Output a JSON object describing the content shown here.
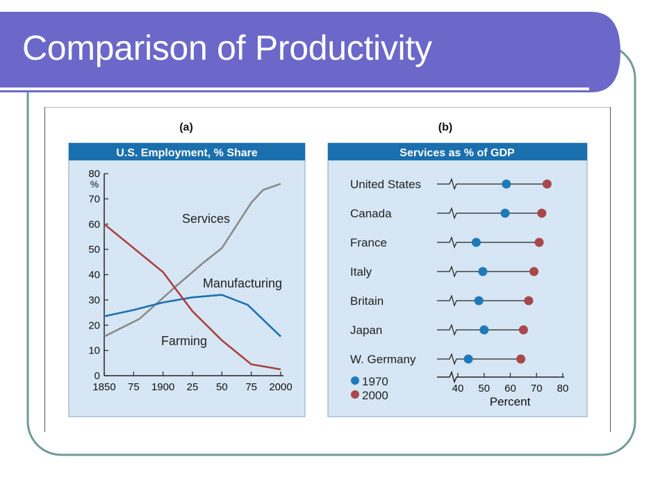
{
  "slide": {
    "title": "Comparison of Productivity",
    "colors": {
      "title_bar": "#6b68c9",
      "frame": "#6f9a96",
      "panel_bg": "#d6e6f4",
      "panel_header": "#1a6fae"
    }
  },
  "chart_data": [
    {
      "type": "line",
      "panel_label": "(a)",
      "title": "U.S. Employment, % Share",
      "xlabel": "",
      "ylabel": "%",
      "x_tick_labels": [
        "1850",
        "75",
        "1900",
        "25",
        "50",
        "75",
        "2000"
      ],
      "x_tick_values": [
        1850,
        1875,
        1900,
        1925,
        1950,
        1975,
        2000
      ],
      "xlim": [
        1850,
        2000
      ],
      "y_tick_labels": [
        "0",
        "10",
        "20",
        "30",
        "40",
        "50",
        "60",
        "70",
        "80"
      ],
      "ylim": [
        0,
        80
      ],
      "grid": false,
      "series": [
        {
          "name": "Services",
          "color": "#8a8a8a",
          "x": [
            1850,
            1880,
            1910,
            1935,
            1950,
            1975,
            1985,
            2000
          ],
          "y": [
            15.5,
            22.5,
            35,
            45,
            50.5,
            68.5,
            73.5,
            76
          ]
        },
        {
          "name": "Manufacturing",
          "color": "#1e6fb0",
          "x": [
            1850,
            1875,
            1900,
            1925,
            1950,
            1972,
            2000
          ],
          "y": [
            23.5,
            26,
            29,
            31,
            32,
            28,
            15.5
          ]
        },
        {
          "name": "Farming",
          "color": "#a8413f",
          "x": [
            1850,
            1875,
            1900,
            1925,
            1950,
            1975,
            2000
          ],
          "y": [
            60,
            50.5,
            41,
            25.5,
            14,
            4.5,
            2.5
          ]
        }
      ]
    },
    {
      "type": "scatter",
      "panel_label": "(b)",
      "title": "Services as % of GDP",
      "xlabel": "Percent",
      "x_ticks": [
        40,
        50,
        60,
        70,
        80
      ],
      "xlim": [
        40,
        80
      ],
      "grid": false,
      "legend": "bottom-left",
      "categories": [
        "United States",
        "Canada",
        "France",
        "Italy",
        "Britain",
        "Japan",
        "W. Germany"
      ],
      "series": [
        {
          "name": "1970",
          "color": "#1e7ab8",
          "values": [
            58.5,
            58,
            47,
            49.5,
            48,
            50,
            44
          ]
        },
        {
          "name": "2000",
          "color": "#a8484a",
          "values": [
            74,
            72,
            71,
            69,
            67,
            65,
            64
          ]
        }
      ]
    }
  ]
}
